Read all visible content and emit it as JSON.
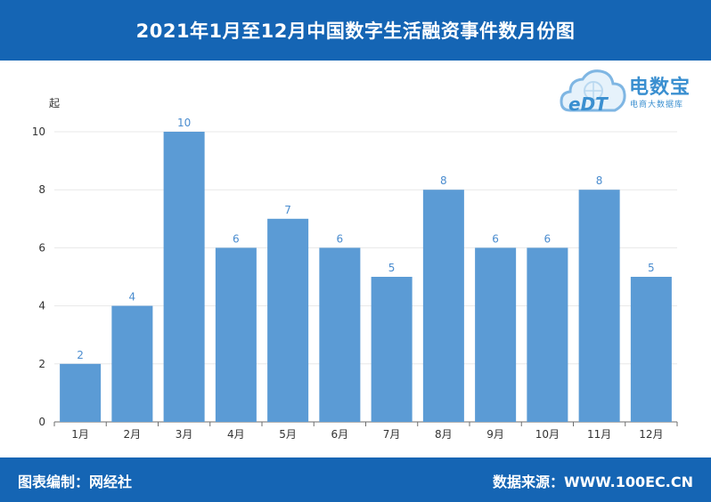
{
  "header": {
    "title": "2021年1月至12月中国数字生活融资事件数月份图"
  },
  "logo": {
    "main_text": "电数宝",
    "sub_text": "电商大数据库",
    "mark_text": "eDT"
  },
  "footer": {
    "left_text": "图表编制：网经社",
    "right_text": "数据来源：WWW.100EC.CN"
  },
  "colors": {
    "accent": "#1565b4",
    "bar": "#5b9bd5",
    "label": "#4a8ccf",
    "logo": "#3a8fd0"
  },
  "chart_data": {
    "type": "bar",
    "title": "2021年1月至12月中国数字生活融资事件数月份图",
    "ylabel": "起",
    "xlabel": "",
    "categories": [
      "1月",
      "2月",
      "3月",
      "4月",
      "5月",
      "6月",
      "7月",
      "8月",
      "9月",
      "10月",
      "11月",
      "12月"
    ],
    "values": [
      2,
      4,
      10,
      6,
      7,
      6,
      5,
      8,
      6,
      6,
      8,
      5
    ],
    "ylim": [
      0,
      10
    ],
    "yticks": [
      0,
      2,
      4,
      6,
      8,
      10
    ],
    "grid": true,
    "data_labels": true,
    "legend": "none"
  }
}
